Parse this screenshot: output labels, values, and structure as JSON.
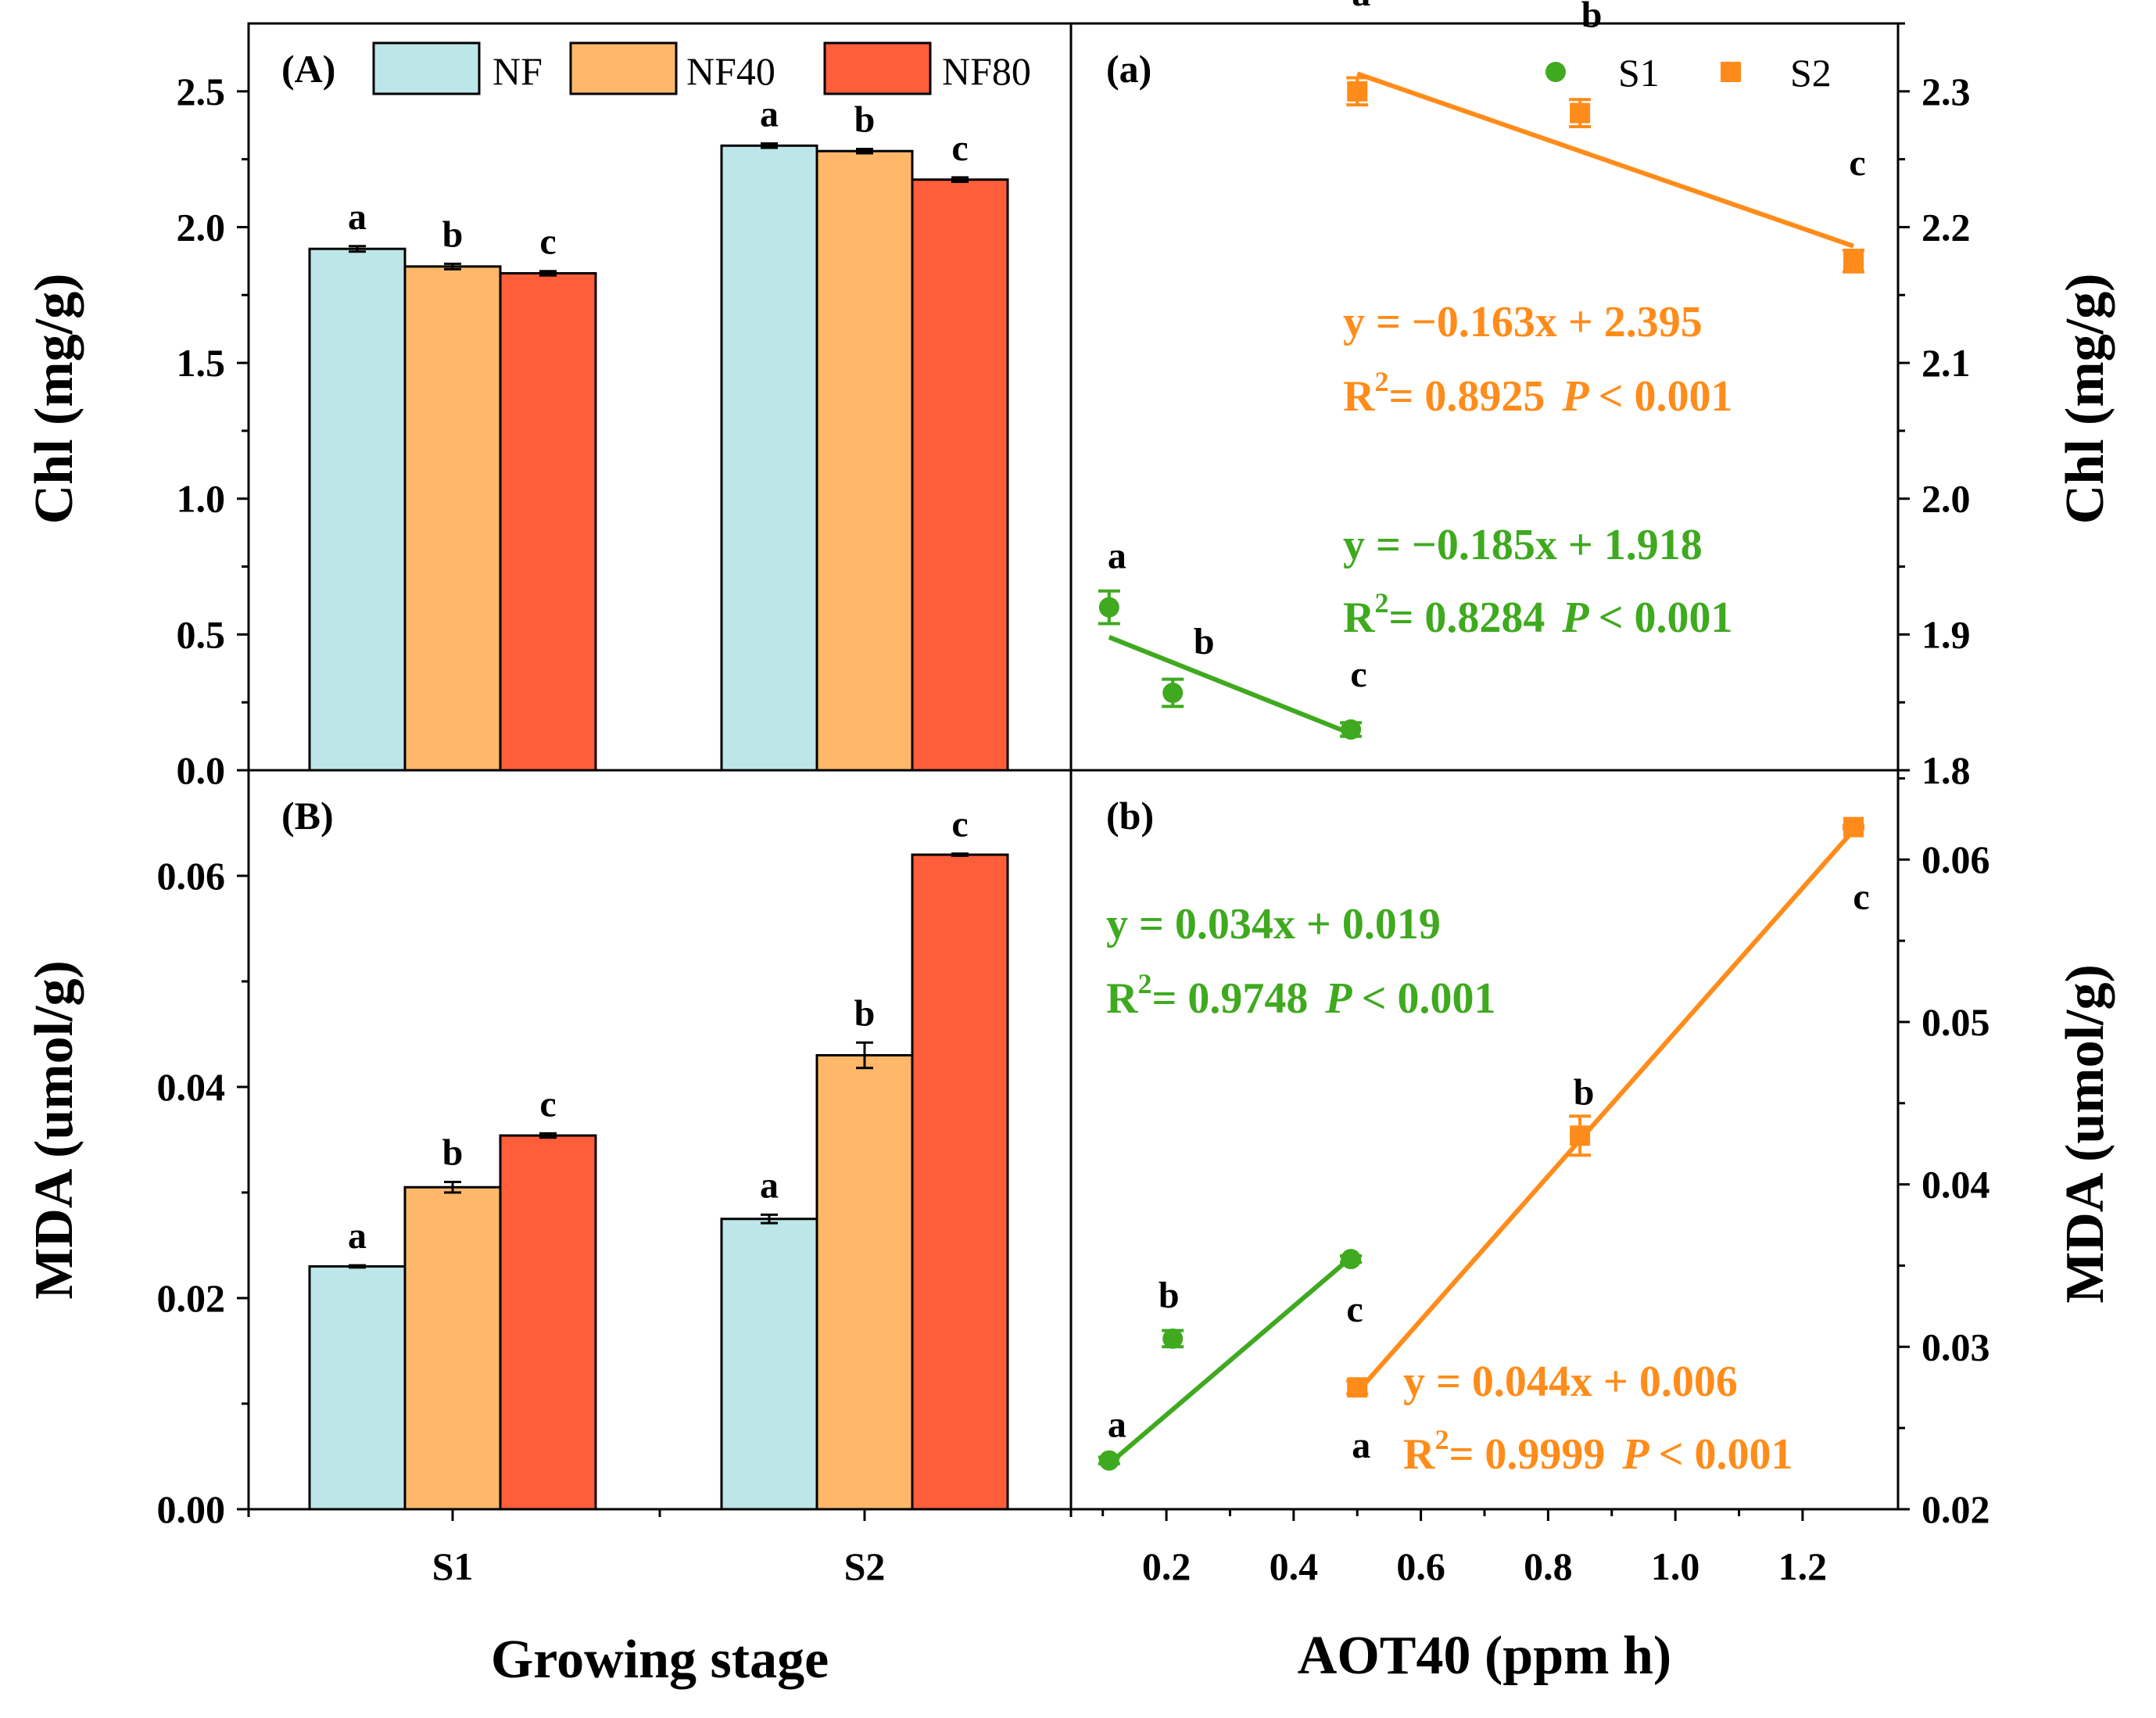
{
  "colors": {
    "NF": "#BDE6E8",
    "NF40": "#FFB86A",
    "NF80": "#FF5E3A",
    "S1": "#3FA91F",
    "S2": "#FF8C1A",
    "axis": "#000000"
  },
  "left_axis_labels": {
    "chl": "Chl (mg/g)",
    "mda": "MDA (umol/g)",
    "x": "Growing stage"
  },
  "right_axis_labels": {
    "chl": "Chl (mg/g)",
    "mda": "MDA (umol/g)",
    "x": "AOT40 (ppm h)"
  },
  "chart_data": [
    {
      "id": "A",
      "panel_label": "(A)",
      "type": "bar",
      "categories": [
        "S1",
        "S2"
      ],
      "xlabel": "Growing stage",
      "ylabel": "Chl (mg/g)",
      "ylim": [
        0,
        2.75
      ],
      "yticks": [
        "0.0",
        "0.5",
        "1.0",
        "1.5",
        "2.0",
        "2.5"
      ],
      "legend": {
        "position": "top",
        "entries": [
          "NF",
          "NF40",
          "NF80"
        ]
      },
      "series": [
        {
          "name": "NF",
          "values": [
            1.92,
            2.3
          ],
          "errors": [
            0.01,
            0.008
          ],
          "letters": [
            "a",
            "a"
          ]
        },
        {
          "name": "NF40",
          "values": [
            1.855,
            2.28
          ],
          "errors": [
            0.01,
            0.008
          ],
          "letters": [
            "b",
            "b"
          ]
        },
        {
          "name": "NF80",
          "values": [
            1.83,
            2.175
          ],
          "errors": [
            0.008,
            0.008
          ],
          "letters": [
            "c",
            "c"
          ]
        }
      ]
    },
    {
      "id": "B",
      "panel_label": "(B)",
      "type": "bar",
      "categories": [
        "S1",
        "S2"
      ],
      "xlabel": "Growing stage",
      "ylabel": "MDA (umol/g)",
      "ylim": [
        0,
        0.07
      ],
      "yticks": [
        "0.00",
        "0.02",
        "0.04",
        "0.06"
      ],
      "series": [
        {
          "name": "NF",
          "values": [
            0.023,
            0.0275
          ],
          "errors": [
            0.0001,
            0.0004
          ],
          "letters": [
            "a",
            "a"
          ]
        },
        {
          "name": "NF40",
          "values": [
            0.0305,
            0.043
          ],
          "errors": [
            0.0005,
            0.0012
          ],
          "letters": [
            "b",
            "b"
          ]
        },
        {
          "name": "NF80",
          "values": [
            0.0354,
            0.062
          ],
          "errors": [
            0.0002,
            0.0001
          ],
          "letters": [
            "c",
            "c"
          ]
        }
      ]
    },
    {
      "id": "a",
      "panel_label": "(a)",
      "type": "scatter",
      "xlabel": "AOT40 (ppm h)",
      "ylabel": "Chl (mg/g)",
      "xlim": [
        0.05,
        1.35
      ],
      "ylim": [
        1.8,
        2.35
      ],
      "yticks": [
        "1.8",
        "1.9",
        "2.0",
        "2.1",
        "2.2",
        "2.3"
      ],
      "legend": {
        "position": "top-right",
        "entries": [
          "S1",
          "S2"
        ]
      },
      "series": [
        {
          "name": "S1",
          "x": [
            0.11,
            0.21,
            0.49
          ],
          "y": [
            1.92,
            1.857,
            1.83
          ],
          "errors": [
            0.012,
            0.01,
            0.005
          ],
          "letters": [
            "a",
            "b",
            "c"
          ],
          "fit": {
            "x": [
              0.11,
              0.49
            ],
            "y": [
              1.898,
              1.827
            ]
          },
          "equation": "y = −0.185x + 1.918",
          "r2_value": "= 0.8284",
          "p_value": "< 0.001"
        },
        {
          "name": "S2",
          "x": [
            0.5,
            0.85,
            1.28
          ],
          "y": [
            2.3,
            2.284,
            2.175
          ],
          "errors": [
            0.01,
            0.01,
            0.008
          ],
          "letters": [
            "a",
            "b",
            "c"
          ],
          "fit": {
            "x": [
              0.5,
              1.28
            ],
            "y": [
              2.313,
              2.186
            ]
          },
          "equation": "y = −0.163x + 2.395",
          "r2_value": "= 0.8925",
          "p_value": "< 0.001"
        }
      ]
    },
    {
      "id": "b",
      "panel_label": "(b)",
      "type": "scatter",
      "xlabel": "AOT40 (ppm h)",
      "ylabel": "MDA (umol/g)",
      "xlim": [
        0.05,
        1.35
      ],
      "xticks": [
        "0.2",
        "0.4",
        "0.6",
        "0.8",
        "1.0",
        "1.2"
      ],
      "ylim": [
        0.02,
        0.0655
      ],
      "yticks": [
        "0.02",
        "0.03",
        "0.04",
        "0.05",
        "0.06"
      ],
      "series": [
        {
          "name": "S1",
          "x": [
            0.11,
            0.21,
            0.49
          ],
          "y": [
            0.023,
            0.0305,
            0.0354
          ],
          "errors": [
            0.0002,
            0.0005,
            0.0002
          ],
          "letters": [
            "a",
            "b",
            "c"
          ],
          "fit": {
            "x": [
              0.11,
              0.49
            ],
            "y": [
              0.0228,
              0.0355
            ]
          },
          "equation": "y = 0.034x + 0.019",
          "r2_value": "= 0.9748",
          "p_value": "< 0.001"
        },
        {
          "name": "S2",
          "x": [
            0.5,
            0.85,
            1.28
          ],
          "y": [
            0.0275,
            0.043,
            0.062
          ],
          "errors": [
            0.0004,
            0.0012,
            0.0001
          ],
          "letters": [
            "a",
            "b",
            "c"
          ],
          "fit": {
            "x": [
              0.5,
              1.28
            ],
            "y": [
              0.0272,
              0.0618
            ]
          },
          "equation": "y = 0.044x + 0.006",
          "r2_value": "= 0.9999",
          "p_value": "< 0.001"
        }
      ]
    }
  ]
}
